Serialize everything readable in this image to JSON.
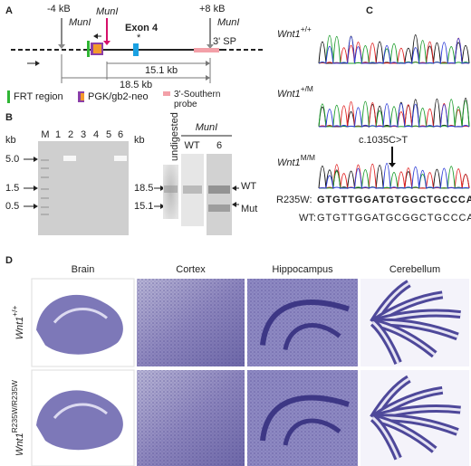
{
  "panel_a": {
    "label": "A",
    "markers": [
      "-4 kB",
      "+8 kB"
    ],
    "enzyme": [
      "MunI",
      "MunI",
      "MunI"
    ],
    "exon": "Exon 4",
    "asterisk": "*",
    "probe": "3' SP",
    "distances": [
      "15.1 kb",
      "18.5 kb"
    ],
    "legend": [
      "FRT region",
      "PGK/gb2-neo",
      "3'-Southern probe"
    ]
  },
  "panel_b": {
    "label": "B",
    "unit": "kb",
    "lanes": [
      "M",
      "1",
      "2",
      "3",
      "4",
      "5",
      "6"
    ],
    "ladder": [
      "5.0",
      "1.5",
      "0.5"
    ],
    "unit2": "kb",
    "sizes": [
      "18.5",
      "15.1"
    ],
    "undigested": "undigested",
    "enzyme": "MunI",
    "blot_lanes": [
      "WT",
      "6"
    ],
    "bands": [
      "WT",
      "Mut"
    ]
  },
  "panel_c": {
    "label": "C",
    "genotypes": [
      {
        "base": "Wnt1",
        "sup": "+/+"
      },
      {
        "base": "Wnt1",
        "sup": "+/M"
      },
      {
        "base": "Wnt1",
        "sup": "M/M"
      }
    ],
    "mutation": "c.1035C>T",
    "sequences": [
      {
        "name": "R235W:",
        "seq": "GTGTTGGATGTGGCTGCCCAC"
      },
      {
        "name": "WT:",
        "seq": "GTGTTGGATGCGGCTGCCCAC"
      }
    ]
  },
  "panel_d": {
    "label": "D",
    "columns": [
      "Brain",
      "Cortex",
      "Hippocampus",
      "Cerebellum"
    ],
    "rows": [
      {
        "base": "Wnt1",
        "sup": "+/+"
      },
      {
        "base": "Wnt1",
        "sup": "R235W/R235W"
      }
    ]
  }
}
